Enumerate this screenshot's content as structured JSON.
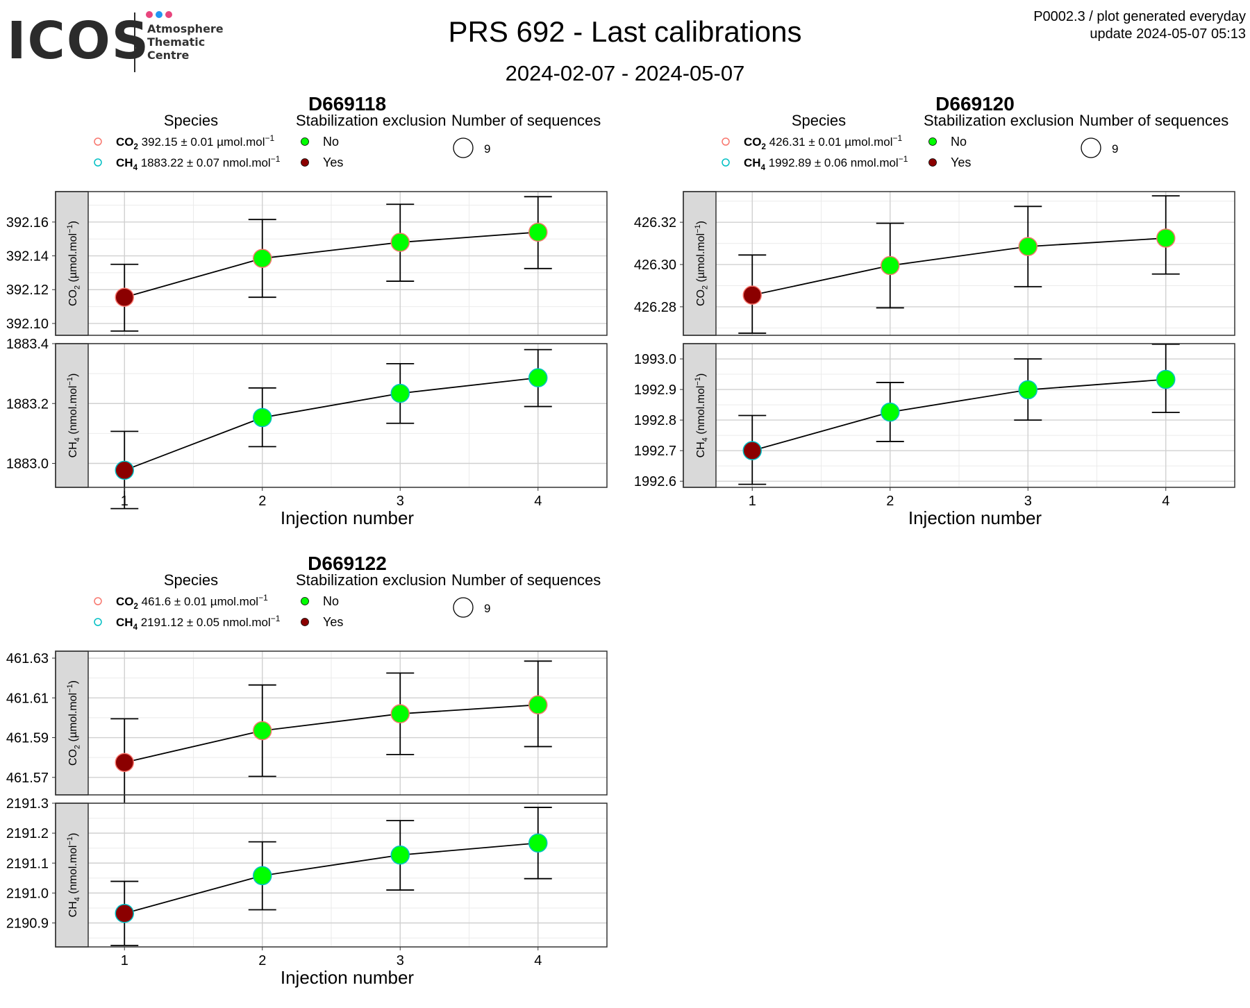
{
  "header": {
    "logo_text": "ICOS",
    "logo_lines": [
      "Atmosphere",
      "Thematic",
      "Centre"
    ],
    "title": "PRS 692 - Last calibrations",
    "subtitle": "2024-02-07 - 2024-05-07",
    "corner_line1": "P0002.3 / plot generated everyday",
    "corner_line2": "update  2024-05-07 05:13"
  },
  "colors": {
    "logo_dot_1": "#e8457d",
    "logo_dot_2": "#2196f3",
    "logo_dot_3": "#e8457d",
    "species_co2": "#f8766d",
    "species_ch4": "#00bfc4",
    "exclusion_no": "#00ff00",
    "exclusion_yes": "#8b0000",
    "strip_bg": "#d9d9d9"
  },
  "chart_data": [
    {
      "type": "line",
      "title": "D669118",
      "xlabel": "Injection number",
      "x": [
        1,
        2,
        3,
        4
      ],
      "legend": {
        "species_title": "Species",
        "species": [
          {
            "gas": "CO2",
            "label": "392.15 ± 0.01 µmol.mol",
            "unit_exp": "−1"
          },
          {
            "gas": "CH4",
            "label": "1883.22 ± 0.07 nmol.mol",
            "unit_exp": "−1"
          }
        ],
        "exclusion_title": "Stabilization exclusion",
        "exclusion": [
          "No",
          "Yes"
        ],
        "sequences_title": "Number of sequences",
        "sequences": "9"
      },
      "facets": [
        {
          "strip": "CO2 (µmol.mol−1)",
          "ylim": [
            392.093,
            392.178
          ],
          "yticks": [
            392.1,
            392.12,
            392.14,
            392.16
          ],
          "tick_decimals": 2,
          "values": [
            392.1155,
            392.1385,
            392.148,
            392.154
          ],
          "err_low": [
            392.0955,
            392.1155,
            392.125,
            392.1325
          ],
          "err_high": [
            392.135,
            392.1615,
            392.1705,
            392.175
          ],
          "excluded": [
            "Yes",
            "No",
            "No",
            "No"
          ]
        },
        {
          "strip": "CH4 (nmol.mol−1)",
          "ylim": [
            1882.92,
            1883.4
          ],
          "yticks": [
            1883.0,
            1883.2,
            1883.4
          ],
          "tick_decimals": 1,
          "values": [
            1882.977,
            1883.153,
            1883.234,
            1883.286
          ],
          "err_low": [
            1882.849,
            1883.056,
            1883.134,
            1883.19
          ],
          "err_high": [
            1883.107,
            1883.252,
            1883.333,
            1883.38
          ],
          "excluded": [
            "Yes",
            "No",
            "No",
            "No"
          ]
        }
      ]
    },
    {
      "type": "line",
      "title": "D669120",
      "xlabel": "Injection number",
      "x": [
        1,
        2,
        3,
        4
      ],
      "legend": {
        "species_title": "Species",
        "species": [
          {
            "gas": "CO2",
            "label": "426.31 ± 0.01 µmol.mol",
            "unit_exp": "−1"
          },
          {
            "gas": "CH4",
            "label": "1992.89 ± 0.06 nmol.mol",
            "unit_exp": "−1"
          }
        ],
        "exclusion_title": "Stabilization exclusion",
        "exclusion": [
          "No",
          "Yes"
        ],
        "sequences_title": "Number of sequences",
        "sequences": "9"
      },
      "facets": [
        {
          "strip": "CO2 (µmol.mol−1)",
          "ylim": [
            426.2665,
            426.3345
          ],
          "yticks": [
            426.28,
            426.3,
            426.32
          ],
          "tick_decimals": 2,
          "values": [
            426.2855,
            426.2995,
            426.3085,
            426.3125
          ],
          "err_low": [
            426.2675,
            426.2795,
            426.2895,
            426.2955
          ],
          "err_high": [
            426.3045,
            426.3195,
            426.3275,
            426.3325
          ],
          "excluded": [
            "Yes",
            "No",
            "No",
            "No"
          ]
        },
        {
          "strip": "CH4 (nmol.mol−1)",
          "ylim": [
            1992.58,
            1993.05
          ],
          "yticks": [
            1992.6,
            1992.7,
            1992.8,
            1992.9,
            1993.0
          ],
          "tick_decimals": 1,
          "values": [
            1992.7,
            1992.826,
            1992.899,
            1992.933
          ],
          "err_low": [
            1992.59,
            1992.73,
            1992.8,
            1992.825
          ],
          "err_high": [
            1992.815,
            1992.923,
            1993.0,
            1993.048
          ],
          "excluded": [
            "Yes",
            "No",
            "No",
            "No"
          ]
        }
      ]
    },
    {
      "type": "line",
      "title": "D669122",
      "xlabel": "Injection number",
      "x": [
        1,
        2,
        3,
        4
      ],
      "legend": {
        "species_title": "Species",
        "species": [
          {
            "gas": "CO2",
            "label": "461.6 ± 0.01 µmol.mol",
            "unit_exp": "−1"
          },
          {
            "gas": "CH4",
            "label": "2191.12 ± 0.05 nmol.mol",
            "unit_exp": "−1"
          }
        ],
        "exclusion_title": "Stabilization exclusion",
        "exclusion": [
          "No",
          "Yes"
        ],
        "sequences_title": "Number of sequences",
        "sequences": "9"
      },
      "facets": [
        {
          "strip": "CO2 (µmol.mol−1)",
          "ylim": [
            461.5612,
            461.6335
          ],
          "yticks": [
            461.57,
            461.59,
            461.61,
            461.63
          ],
          "tick_decimals": 2,
          "values": [
            461.5775,
            461.5935,
            461.602,
            461.6065
          ],
          "err_low": [
            461.5555,
            461.5705,
            461.5815,
            461.5855
          ],
          "err_high": [
            461.5995,
            461.6165,
            461.6225,
            461.6285
          ],
          "excluded": [
            "Yes",
            "No",
            "No",
            "No"
          ]
        },
        {
          "strip": "CH4 (nmol.mol−1)",
          "ylim": [
            2190.82,
            2191.3
          ],
          "yticks": [
            2190.9,
            2191.0,
            2191.1,
            2191.2,
            2191.3
          ],
          "tick_decimals": 1,
          "values": [
            2190.932,
            2191.058,
            2191.127,
            2191.167
          ],
          "err_low": [
            2190.825,
            2190.944,
            2191.01,
            2191.048
          ],
          "err_high": [
            2191.039,
            2191.171,
            2191.242,
            2191.286
          ],
          "excluded": [
            "Yes",
            "No",
            "No",
            "No"
          ]
        }
      ]
    }
  ]
}
